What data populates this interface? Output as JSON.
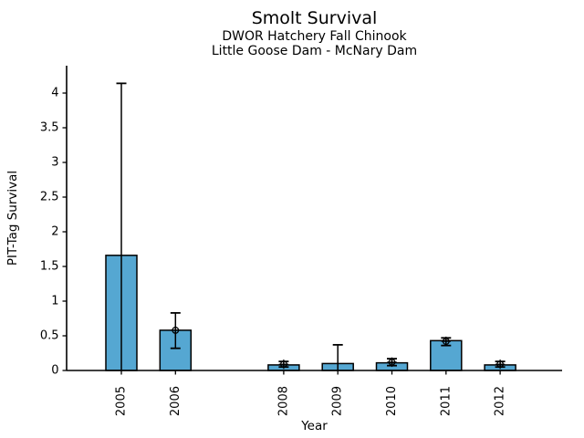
{
  "chart_data": {
    "type": "bar",
    "title": "Smolt Survival",
    "subtitle": [
      "DWOR Hatchery Fall Chinook",
      "Little Goose Dam - McNary Dam"
    ],
    "xlabel": "Year",
    "ylabel": "PIT-Tag Survival",
    "categories": [
      "2005",
      "2006",
      "2008",
      "2009",
      "2010",
      "2011",
      "2012"
    ],
    "values": [
      1.66,
      0.58,
      0.08,
      0.1,
      0.11,
      0.43,
      0.08
    ],
    "error_low": [
      0.0,
      0.32,
      0.05,
      0.0,
      0.07,
      0.36,
      0.05
    ],
    "error_high": [
      4.14,
      0.83,
      0.13,
      0.37,
      0.17,
      0.47,
      0.13
    ],
    "point_markers": [
      null,
      0.58,
      0.09,
      null,
      0.12,
      0.42,
      0.09
    ],
    "x_slots": [
      "2005",
      "2006",
      "2007",
      "2008",
      "2009",
      "2010",
      "2011",
      "2012"
    ],
    "missing_years": [
      "2007"
    ],
    "ytick_labels": [
      "0",
      "0.5",
      "1",
      "1.5",
      "2",
      "2.5",
      "3",
      "3.5",
      "4"
    ],
    "ytick_values": [
      0,
      0.5,
      1,
      1.5,
      2,
      2.5,
      3,
      3.5,
      4
    ],
    "ylim": [
      0,
      4.39
    ],
    "grid": false,
    "legend": false,
    "bar_color": "#55A7D2",
    "bar_edge_color": "#000000",
    "error_bar_color": "#000000",
    "text_color": "#000000",
    "background": "#FFFFFF"
  }
}
